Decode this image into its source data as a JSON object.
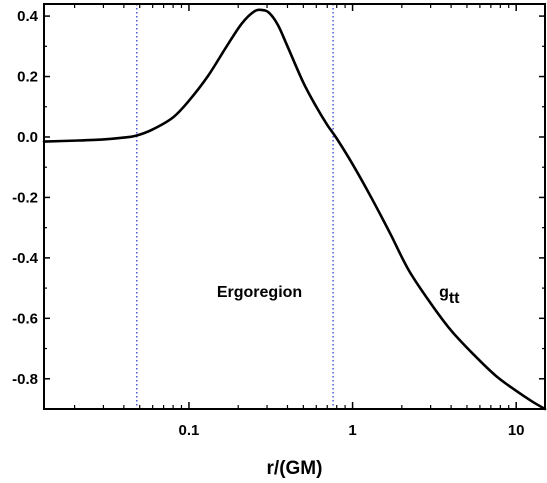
{
  "chart_data": {
    "type": "line",
    "title": "",
    "xlabel": "r/(GM)",
    "ylabel": "",
    "xscale": "log",
    "xlim": [
      0.013,
      15
    ],
    "ylim": [
      -0.9,
      0.44
    ],
    "x_ticks": [
      {
        "value": 0.1,
        "label": "0.1"
      },
      {
        "value": 1,
        "label": "1"
      },
      {
        "value": 10,
        "label": "10"
      }
    ],
    "y_ticks": [
      {
        "value": 0.4,
        "label": "0.4"
      },
      {
        "value": 0.2,
        "label": "0.2"
      },
      {
        "value": 0.0,
        "label": "0.0"
      },
      {
        "value": -0.2,
        "label": "-0.2"
      },
      {
        "value": -0.4,
        "label": "-0.4"
      },
      {
        "value": -0.6,
        "label": "-0.6"
      },
      {
        "value": -0.8,
        "label": "-0.8"
      }
    ],
    "grid": false,
    "series": [
      {
        "name": "",
        "color": "#000000",
        "x": [
          0.013,
          0.02,
          0.03,
          0.04,
          0.048,
          0.06,
          0.08,
          0.1,
          0.13,
          0.17,
          0.21,
          0.25,
          0.28,
          0.31,
          0.35,
          0.4,
          0.5,
          0.6,
          0.7,
          0.8,
          1.0,
          1.3,
          1.7,
          2.2,
          3.0,
          4.0,
          5.5,
          7.5,
          10,
          12.5,
          15
        ],
        "y": [
          -0.015,
          -0.012,
          -0.008,
          -0.002,
          0.005,
          0.025,
          0.065,
          0.12,
          0.2,
          0.3,
          0.375,
          0.415,
          0.42,
          0.41,
          0.37,
          0.3,
          0.18,
          0.1,
          0.04,
          -0.005,
          -0.09,
          -0.2,
          -0.32,
          -0.44,
          -0.55,
          -0.64,
          -0.72,
          -0.79,
          -0.84,
          -0.875,
          -0.9
        ]
      }
    ],
    "vlines": [
      {
        "x": 0.048,
        "color": "#1f2fd0",
        "style": "dotted"
      },
      {
        "x": 0.76,
        "color": "#1f2fd0",
        "style": "dotted"
      }
    ],
    "annotations": [
      {
        "text": "Ergoregion",
        "x": 0.27,
        "y": -0.53
      },
      {
        "text": "g",
        "sub": "tt",
        "x": 3.9,
        "y": -0.53
      }
    ]
  }
}
